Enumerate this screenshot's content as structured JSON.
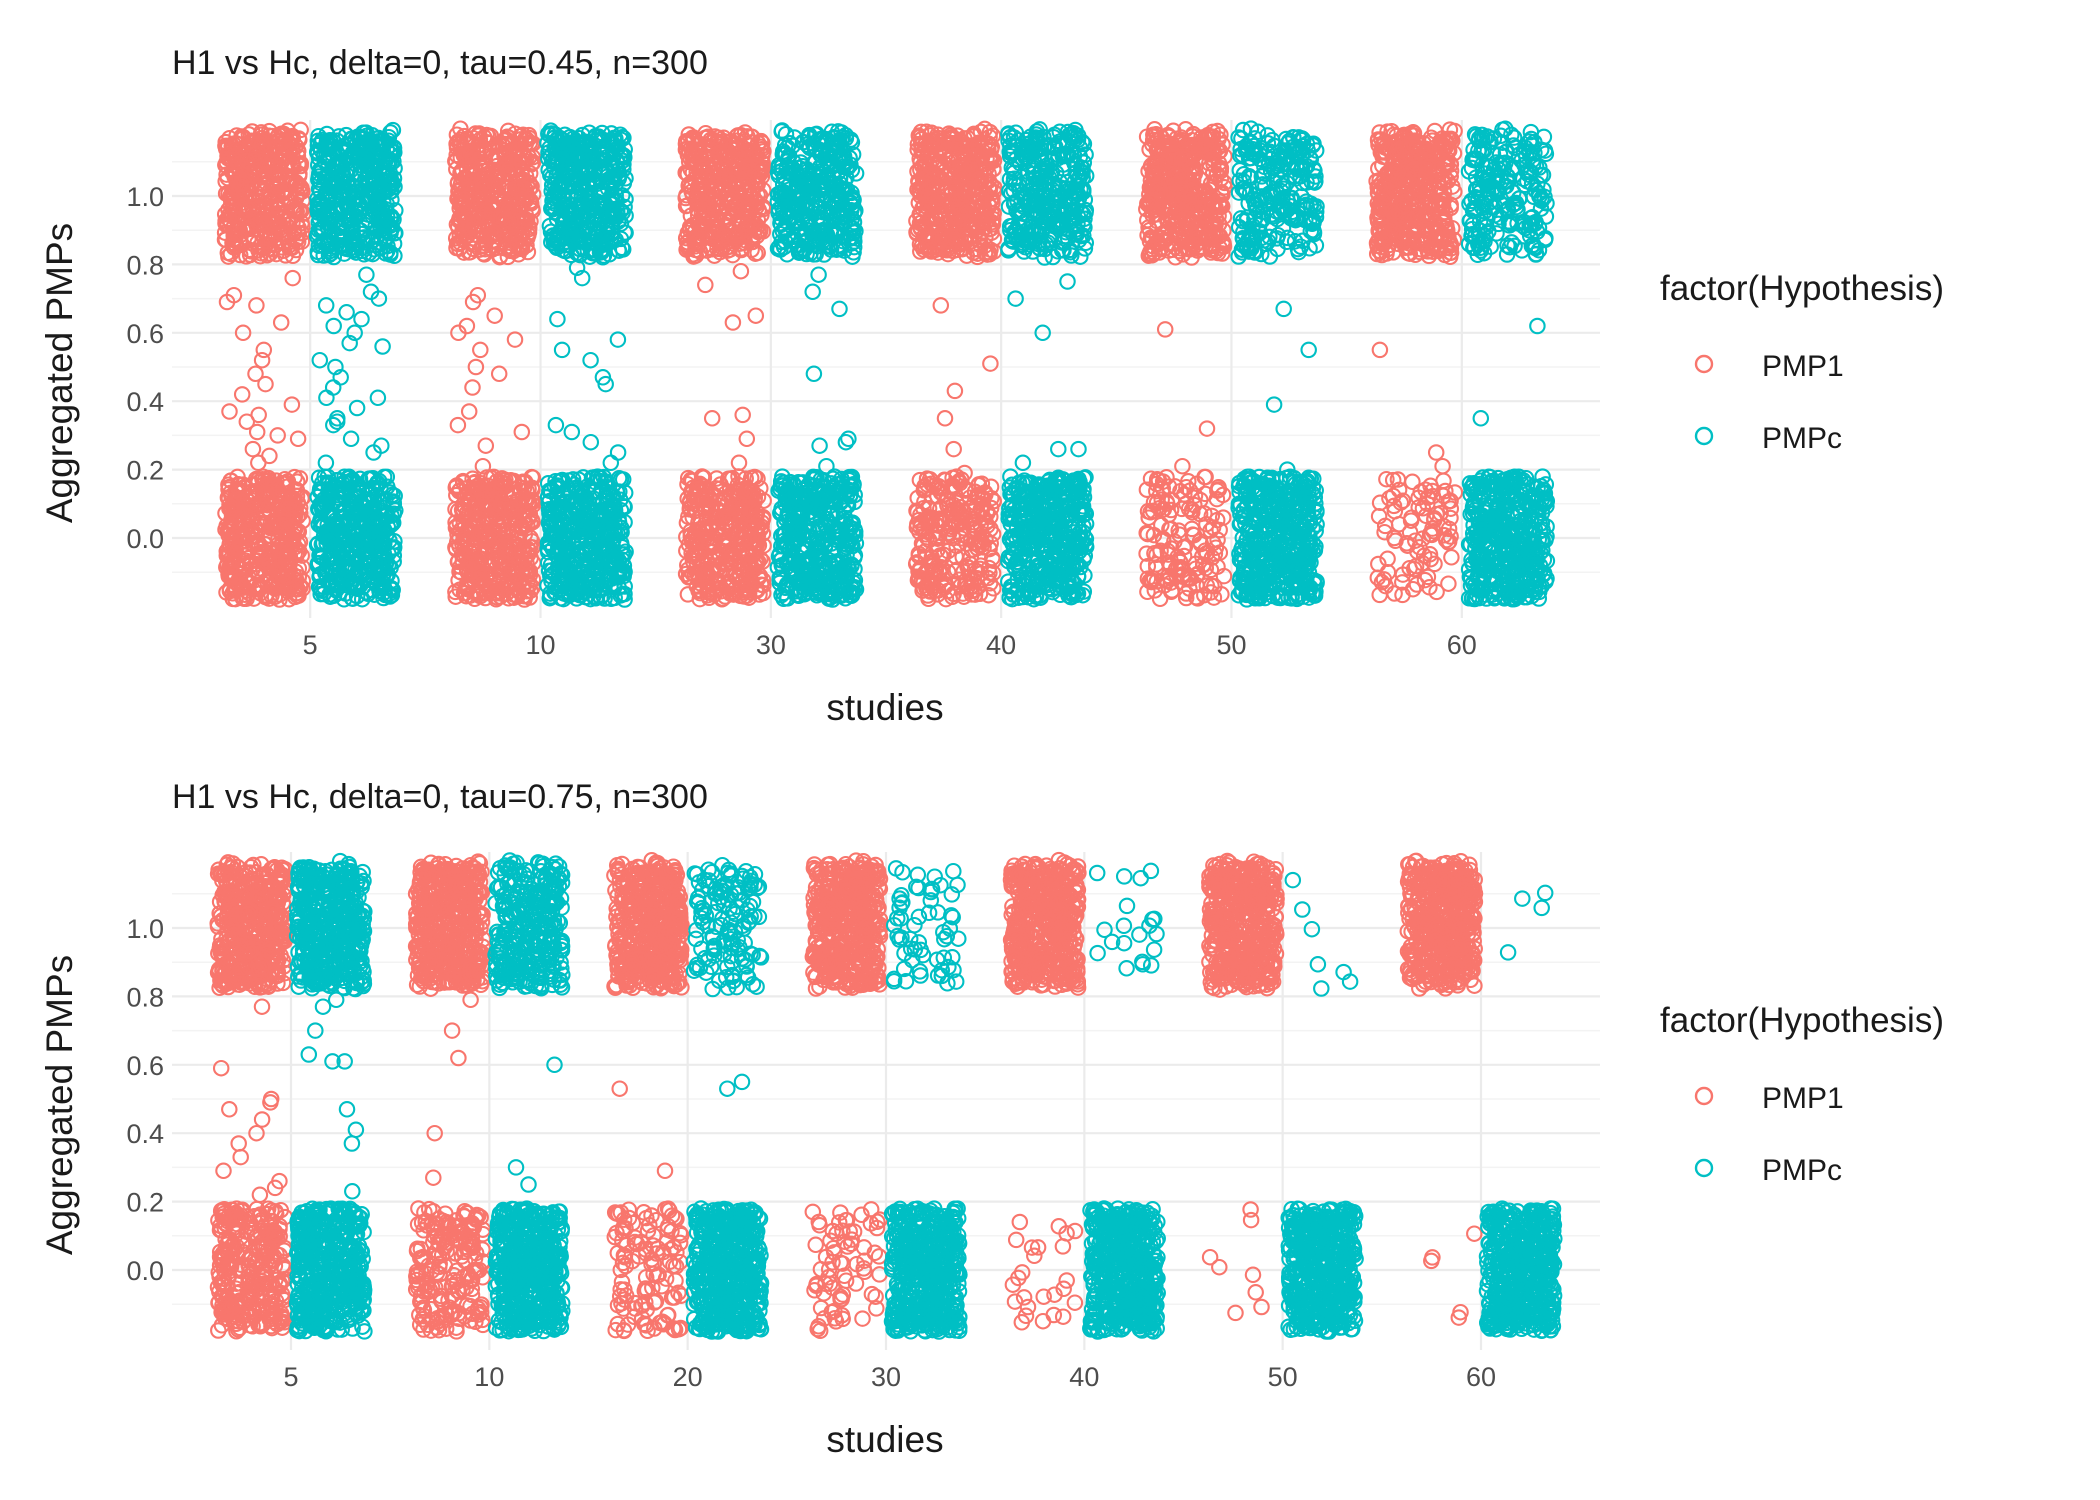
{
  "colors": {
    "PMP1": "#F8766D",
    "PMPc": "#00BFC4",
    "grid_major": "#EBEBEB",
    "grid_minor": "#F3F3F3",
    "text": "#1A1A1A",
    "tick_text": "#4D4D4D"
  },
  "legend": {
    "title": "factor(Hypothesis)",
    "position": "right"
  },
  "chart_data": [
    {
      "type": "scatter",
      "title": "H1 vs Hc, delta=0, tau=0.45, n=300",
      "xlabel": "studies",
      "ylabel": "Aggregated PMPs",
      "categories": [
        "5",
        "10",
        "30",
        "40",
        "50",
        "60"
      ],
      "yticks": [
        "0.0",
        "0.2",
        "0.4",
        "0.6",
        "0.8",
        "1.0"
      ],
      "ylim": [
        -0.2,
        1.2
      ],
      "jitter": {
        "width": 0.4,
        "height": 0.18
      },
      "grid": true,
      "series": [
        {
          "name": "PMP1",
          "high_cluster_count": [
            420,
            420,
            420,
            430,
            440,
            440
          ],
          "low_cluster_count": [
            420,
            420,
            380,
            260,
            150,
            90
          ],
          "mid_values": [
            [
              0.24,
              0.36,
              0.29,
              0.45,
              0.6,
              0.68,
              0.71,
              0.52,
              0.39,
              0.31,
              0.48,
              0.76,
              0.63,
              0.34,
              0.26,
              0.22,
              0.55,
              0.69,
              0.42,
              0.37,
              0.3
            ],
            [
              0.37,
              0.33,
              0.5,
              0.55,
              0.6,
              0.65,
              0.69,
              0.71,
              0.21,
              0.44,
              0.31,
              0.27,
              0.58,
              0.62,
              0.48
            ],
            [
              0.22,
              0.29,
              0.36,
              0.35,
              0.63,
              0.65,
              0.74,
              0.78
            ],
            [
              0.19,
              0.26,
              0.35,
              0.43,
              0.51,
              0.68
            ],
            [
              0.21,
              0.32,
              0.61
            ],
            [
              0.25,
              0.21,
              0.55
            ]
          ]
        },
        {
          "name": "PMPc",
          "high_cluster_count": [
            420,
            420,
            360,
            330,
            240,
            220
          ],
          "low_cluster_count": [
            420,
            420,
            420,
            430,
            440,
            440
          ],
          "mid_values": [
            [
              0.22,
              0.27,
              0.34,
              0.41,
              0.47,
              0.52,
              0.6,
              0.64,
              0.68,
              0.72,
              0.77,
              0.38,
              0.29,
              0.57,
              0.66,
              0.44,
              0.35,
              0.25,
              0.5,
              0.62,
              0.7,
              0.33,
              0.41,
              0.56
            ],
            [
              0.22,
              0.31,
              0.33,
              0.47,
              0.52,
              0.55,
              0.58,
              0.64,
              0.76,
              0.79,
              0.45,
              0.28,
              0.25
            ],
            [
              0.21,
              0.27,
              0.28,
              0.29,
              0.48,
              0.67,
              0.72,
              0.77
            ],
            [
              0.22,
              0.26,
              0.26,
              0.6,
              0.7,
              0.75
            ],
            [
              0.2,
              0.39,
              0.55,
              0.67
            ],
            [
              0.35,
              0.62
            ]
          ]
        }
      ]
    },
    {
      "type": "scatter",
      "title": "H1 vs Hc, delta=0, tau=0.75, n=300",
      "xlabel": "studies",
      "ylabel": "Aggregated PMPs",
      "categories": [
        "5",
        "10",
        "20",
        "30",
        "40",
        "50",
        "60"
      ],
      "yticks": [
        "0.0",
        "0.2",
        "0.4",
        "0.6",
        "0.8",
        "1.0"
      ],
      "ylim": [
        -0.2,
        1.2
      ],
      "jitter": {
        "width": 0.4,
        "height": 0.18
      },
      "grid": true,
      "series": [
        {
          "name": "PMP1",
          "high_cluster_count": [
            440,
            440,
            450,
            460,
            460,
            460,
            460
          ],
          "low_cluster_count": [
            300,
            200,
            120,
            70,
            25,
            8,
            5
          ],
          "mid_values": [
            [
              0.59,
              0.49,
              0.44,
              0.4,
              0.37,
              0.33,
              0.29,
              0.26,
              0.24,
              0.22,
              0.5,
              0.47,
              0.77
            ],
            [
              0.79,
              0.7,
              0.62,
              0.4,
              0.27
            ],
            [
              0.53,
              0.29
            ],
            [],
            [],
            [],
            []
          ]
        },
        {
          "name": "PMPc",
          "high_cluster_count": [
            440,
            300,
            130,
            60,
            20,
            7,
            4
          ],
          "low_cluster_count": [
            440,
            450,
            460,
            460,
            460,
            460,
            460
          ],
          "mid_values": [
            [
              0.79,
              0.77,
              0.7,
              0.63,
              0.61,
              0.47,
              0.41,
              0.37,
              0.23,
              0.61
            ],
            [
              0.6,
              0.3,
              0.25
            ],
            [
              0.53,
              0.55
            ],
            [],
            [],
            [],
            []
          ]
        }
      ]
    }
  ]
}
